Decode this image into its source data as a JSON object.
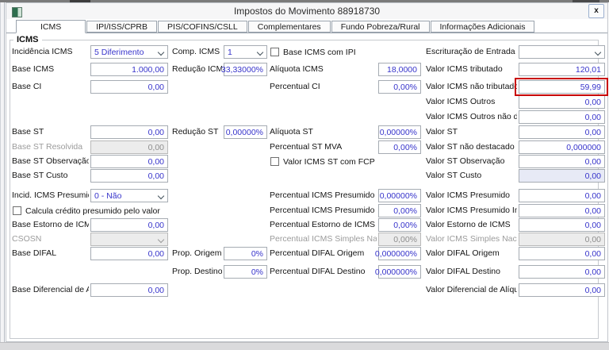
{
  "window": {
    "title": "Impostos do Movimento 88918730",
    "close_label": "x"
  },
  "tabs": [
    {
      "label": "ICMS",
      "active": true
    },
    {
      "label": "IPI/ISS/CPRB",
      "active": false
    },
    {
      "label": "PIS/COFINS/CSLL",
      "active": false
    },
    {
      "label": "Complementares",
      "active": false
    },
    {
      "label": "Fundo Pobreza/Rural",
      "active": false
    },
    {
      "label": "Informações Adicionais",
      "active": false
    }
  ],
  "group_title": "ICMS",
  "colors": {
    "value_text": "#3734cb",
    "highlight_border": "#c80000"
  },
  "form": {
    "rows": [
      {
        "cells": [
          {
            "col": "a",
            "label": "Incidência ICMS",
            "control": "select",
            "value": "5 Diferimento",
            "state": "normal"
          },
          {
            "col": "b",
            "label": "Comp. ICMS",
            "control": "select",
            "value": "1",
            "state": "normal"
          },
          {
            "col": "c",
            "label": "Base ICMS com IPI",
            "control": "checkbox",
            "checked": false
          },
          {
            "col": "d",
            "label": "Escrituração de Entrada",
            "control": "select",
            "value": "",
            "state": "normal"
          }
        ]
      },
      {
        "cells": [
          {
            "col": "a",
            "label": "Base ICMS",
            "control": "input",
            "value": "1.000,00",
            "state": "normal"
          },
          {
            "col": "b",
            "label": "Redução ICMS",
            "control": "input",
            "value": "33,33000%",
            "state": "normal"
          },
          {
            "col": "c",
            "label": "Alíquota ICMS",
            "control": "input",
            "value": "18,0000",
            "state": "normal"
          },
          {
            "col": "d",
            "label": "Valor ICMS tributado",
            "control": "input",
            "value": "120,01",
            "state": "normal"
          }
        ]
      },
      {
        "cells": [
          {
            "col": "a",
            "label": "Base CI",
            "control": "input",
            "value": "0,00",
            "state": "normal"
          },
          {
            "col": "c",
            "label": "Percentual CI",
            "control": "input",
            "value": "0,00%",
            "state": "normal"
          },
          {
            "col": "d",
            "label": "Valor ICMS não tributado",
            "control": "input",
            "value": "59,99",
            "state": "normal",
            "highlight": true
          }
        ]
      },
      {
        "cells": [
          {
            "col": "d",
            "label": "Valor ICMS Outros",
            "control": "input",
            "value": "0,00",
            "state": "normal"
          }
        ]
      },
      {
        "cells": [
          {
            "col": "d",
            "label": "Valor ICMS Outros não dest.",
            "control": "input",
            "value": "0,00",
            "state": "normal"
          }
        ]
      },
      {
        "cells": [
          {
            "col": "a",
            "label": "Base ST",
            "control": "input",
            "value": "0,00",
            "state": "normal"
          },
          {
            "col": "b",
            "label": "Redução ST",
            "control": "input",
            "value": "0,00000%",
            "state": "normal"
          },
          {
            "col": "c",
            "label": "Alíquota ST",
            "control": "input",
            "value": "0,00000%",
            "state": "normal"
          },
          {
            "col": "d",
            "label": "Valor ST",
            "control": "input",
            "value": "0,00",
            "state": "normal"
          }
        ]
      },
      {
        "cells": [
          {
            "col": "a",
            "label": "Base ST Resolvida",
            "control": "input",
            "value": "0,00",
            "state": "disabled"
          },
          {
            "col": "c",
            "label": "Percentual ST MVA",
            "control": "input",
            "value": "0,00%",
            "state": "normal"
          },
          {
            "col": "d",
            "label": "Valor ST não destacado",
            "control": "input",
            "value": "0,000000",
            "state": "normal"
          }
        ]
      },
      {
        "cells": [
          {
            "col": "a",
            "label": "Base ST Observação",
            "control": "input",
            "value": "0,00",
            "state": "normal"
          },
          {
            "col": "c",
            "label": "Valor ICMS ST com FCP",
            "control": "checkbox",
            "checked": false
          },
          {
            "col": "d",
            "label": "Valor ST Observação",
            "control": "input",
            "value": "0,00",
            "state": "normal"
          }
        ]
      },
      {
        "cells": [
          {
            "col": "a",
            "label": "Base ST Custo",
            "control": "input",
            "value": "0,00",
            "state": "normal"
          },
          {
            "col": "d",
            "label": "Valor ST Custo",
            "control": "input",
            "value": "0,00",
            "state": "readonly"
          }
        ]
      },
      {
        "cells": [
          {
            "col": "a",
            "label": "Incid. ICMS Presumido",
            "control": "select",
            "value": "0 - Não",
            "state": "normal"
          },
          {
            "col": "c",
            "label": "Percentual ICMS Presumido",
            "control": "input",
            "value": "0,00000%",
            "state": "normal"
          },
          {
            "col": "d",
            "label": "Valor ICMS Presumido",
            "control": "input",
            "value": "0,00",
            "state": "normal"
          }
        ]
      },
      {
        "cells": [
          {
            "col": "a",
            "label": "Calcula crédito presumido pelo valor",
            "control": "checkbox",
            "checked": false
          },
          {
            "col": "c",
            "label": "Percentual ICMS Presumido Imp. PR",
            "control": "input",
            "value": "0,00%",
            "state": "normal"
          },
          {
            "col": "d",
            "label": "Valor ICMS Presumido Imp. PR",
            "control": "input",
            "value": "0,00",
            "state": "normal"
          }
        ]
      },
      {
        "cells": [
          {
            "col": "a",
            "label": "Base Estorno de ICMS",
            "control": "input",
            "value": "0,00",
            "state": "normal"
          },
          {
            "col": "c",
            "label": "Percentual Estorno de ICMS",
            "control": "input",
            "value": "0,00%",
            "state": "normal"
          },
          {
            "col": "d",
            "label": "Valor Estorno de ICMS",
            "control": "input",
            "value": "0,00",
            "state": "normal"
          }
        ]
      },
      {
        "cells": [
          {
            "col": "a",
            "label": "CSOSN",
            "control": "select",
            "value": "",
            "state": "disabled"
          },
          {
            "col": "c",
            "label": "Percentual ICMS Simples Nacional",
            "control": "input",
            "value": "0,00%",
            "state": "disabled"
          },
          {
            "col": "d",
            "label": "Valor ICMS Simples Nacional",
            "control": "input",
            "value": "0,00",
            "state": "disabled"
          }
        ]
      },
      {
        "cells": [
          {
            "col": "a",
            "label": "Base DIFAL",
            "control": "input",
            "value": "0,00",
            "state": "normal"
          },
          {
            "col": "b",
            "label": "Prop. Origem",
            "control": "input",
            "value": "0%",
            "state": "normal"
          },
          {
            "col": "c",
            "label": "Percentual DIFAL Origem",
            "control": "input",
            "value": "0,000000%",
            "state": "normal"
          },
          {
            "col": "d",
            "label": "Valor DIFAL Origem",
            "control": "input",
            "value": "0,00",
            "state": "normal"
          }
        ]
      },
      {
        "cells": [
          {
            "col": "b",
            "label": "Prop. Destino",
            "control": "input",
            "value": "0%",
            "state": "normal"
          },
          {
            "col": "c",
            "label": "Percentual DIFAL Destino",
            "control": "input",
            "value": "0,000000%",
            "state": "normal"
          },
          {
            "col": "d",
            "label": "Valor DIFAL Destino",
            "control": "input",
            "value": "0,00",
            "state": "normal"
          }
        ]
      },
      {
        "cells": [
          {
            "col": "a",
            "label": "Base Diferencial de Alíq.",
            "control": "input",
            "value": "0,00",
            "state": "normal"
          },
          {
            "col": "d",
            "label": "Valor Diferencial de Alíquota",
            "control": "input",
            "value": "0,00",
            "state": "normal"
          }
        ]
      }
    ]
  }
}
